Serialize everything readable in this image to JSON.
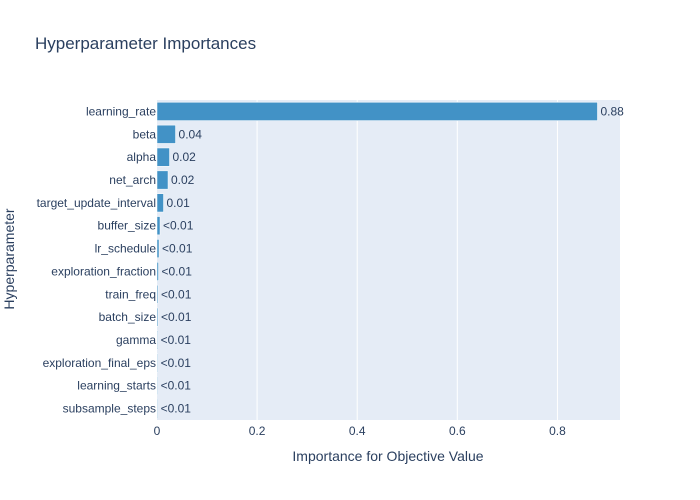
{
  "chart_data": {
    "type": "bar",
    "orientation": "horizontal",
    "title": "Hyperparameter Importances",
    "xlabel": "Importance for Objective Value",
    "ylabel": "Hyperparameter",
    "xlim": [
      0,
      0.925
    ],
    "xticks": [
      0,
      0.2,
      0.4,
      0.6,
      0.8
    ],
    "grid": true,
    "colors": {
      "bar": "#4292c6",
      "plot_bg": "#e5ecf6",
      "grid": "#ffffff",
      "text": "#2a3f5f"
    },
    "categories": [
      "learning_rate",
      "beta",
      "alpha",
      "net_arch",
      "target_update_interval",
      "buffer_size",
      "lr_schedule",
      "exploration_fraction",
      "train_freq",
      "batch_size",
      "gamma",
      "exploration_final_eps",
      "learning_starts",
      "subsample_steps"
    ],
    "values": [
      0.88,
      0.037,
      0.025,
      0.022,
      0.013,
      0.006,
      0.004,
      0.003,
      0.002,
      0.002,
      0.001,
      0.001,
      0.0005,
      0.0005
    ],
    "data_labels": [
      "0.88",
      "0.04",
      "0.02",
      "0.02",
      "0.01",
      "<0.01",
      "<0.01",
      "<0.01",
      "<0.01",
      "<0.01",
      "<0.01",
      "<0.01",
      "<0.01",
      "<0.01"
    ]
  }
}
